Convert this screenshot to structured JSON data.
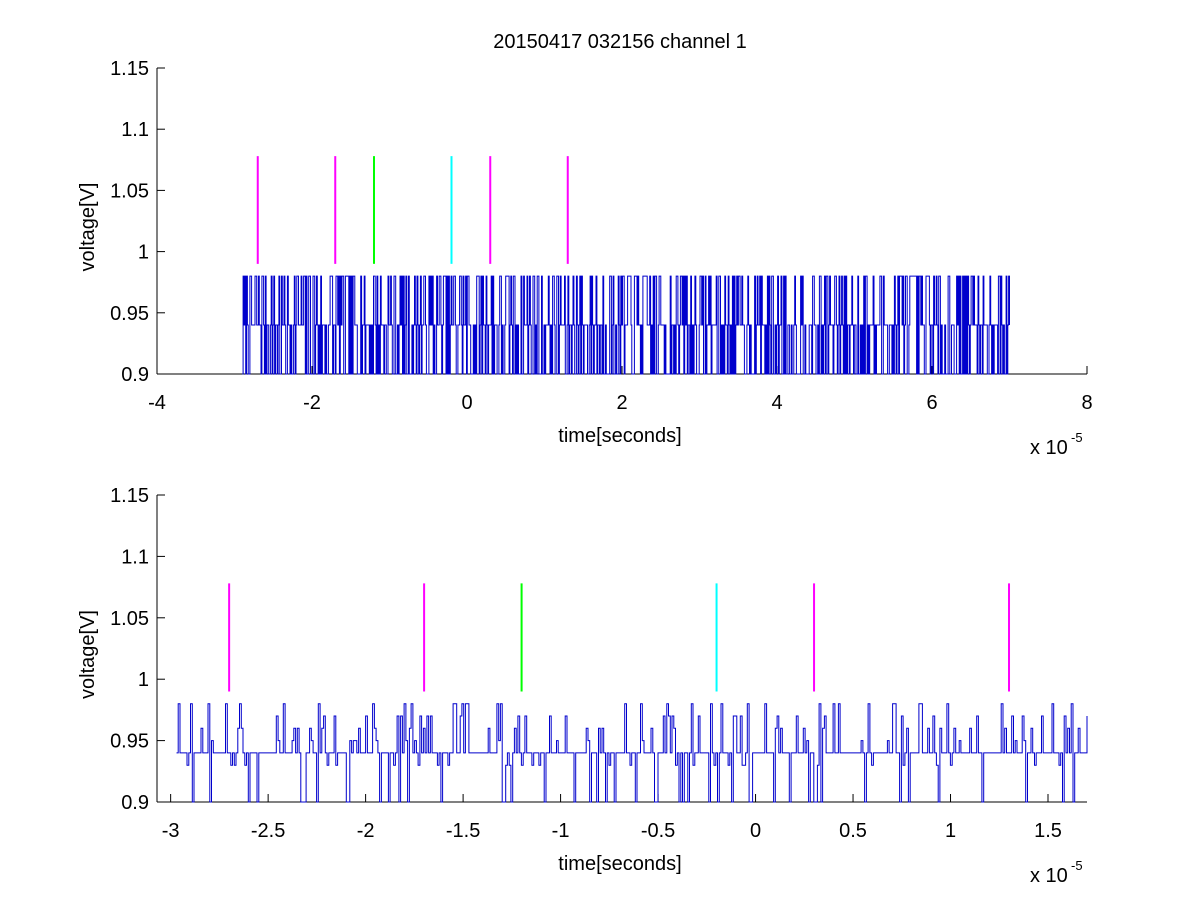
{
  "figure": {
    "title": "20150417 032156 channel 1"
  },
  "chart_data": [
    {
      "type": "line",
      "title": "20150417 032156 channel 1",
      "xlabel": "time[seconds]",
      "ylabel": "voltage[V]",
      "x_multiplier_label": "x 10",
      "x_multiplier_exponent": "-5",
      "xlim": [
        -4,
        8
      ],
      "ylim": [
        0.9,
        1.15
      ],
      "xticks": [
        -4,
        -2,
        0,
        2,
        4,
        6,
        8
      ],
      "xtick_labels": [
        "-4",
        "-2",
        "0",
        "2",
        "4",
        "6",
        "8"
      ],
      "yticks": [
        0.9,
        0.95,
        1,
        1.05,
        1.1,
        1.15
      ],
      "ytick_labels": [
        "0.9",
        "0.95",
        "1",
        "1.05",
        "1.1",
        "1.15"
      ],
      "grid": false,
      "signal": {
        "color": "#0000cc",
        "x_range": [
          -2.9,
          7.0
        ],
        "levels": [
          0.9,
          0.94,
          0.98
        ],
        "baseline": 0.94,
        "seed": 7
      },
      "markers": [
        {
          "x": -2.7,
          "y0": 0.99,
          "y1": 1.078,
          "color": "#ff00ff"
        },
        {
          "x": -1.7,
          "y0": 0.99,
          "y1": 1.078,
          "color": "#ff00ff"
        },
        {
          "x": -1.2,
          "y0": 0.99,
          "y1": 1.078,
          "color": "#00ff00"
        },
        {
          "x": -0.2,
          "y0": 0.99,
          "y1": 1.078,
          "color": "#00ffff"
        },
        {
          "x": 0.3,
          "y0": 0.99,
          "y1": 1.078,
          "color": "#ff00ff"
        },
        {
          "x": 1.3,
          "y0": 0.99,
          "y1": 1.078,
          "color": "#ff00ff"
        }
      ]
    },
    {
      "type": "line",
      "title": "",
      "xlabel": "time[seconds]",
      "ylabel": "voltage[V]",
      "x_multiplier_label": "x 10",
      "x_multiplier_exponent": "-5",
      "xlim": [
        -3.07,
        1.7
      ],
      "ylim": [
        0.9,
        1.15
      ],
      "xticks": [
        -3,
        -2.5,
        -2,
        -1.5,
        -1,
        -0.5,
        0,
        0.5,
        1,
        1.5
      ],
      "xtick_labels": [
        "-3",
        "-2.5",
        "-2",
        "-1.5",
        "-1",
        "-0.5",
        "0",
        "0.5",
        "1",
        "1.5"
      ],
      "yticks": [
        0.9,
        0.95,
        1,
        1.05,
        1.1,
        1.15
      ],
      "ytick_labels": [
        "0.9",
        "0.95",
        "1",
        "1.05",
        "1.1",
        "1.15"
      ],
      "grid": false,
      "signal": {
        "color": "#0000cc",
        "x_range": [
          -2.97,
          1.7
        ],
        "levels": [
          0.9,
          0.93,
          0.94,
          0.95,
          0.96,
          0.97,
          0.98
        ],
        "baseline": 0.94,
        "seed": 3
      },
      "markers": [
        {
          "x": -2.7,
          "y0": 0.99,
          "y1": 1.078,
          "color": "#ff00ff"
        },
        {
          "x": -1.7,
          "y0": 0.99,
          "y1": 1.078,
          "color": "#ff00ff"
        },
        {
          "x": -1.2,
          "y0": 0.99,
          "y1": 1.078,
          "color": "#00ff00"
        },
        {
          "x": -0.2,
          "y0": 0.99,
          "y1": 1.078,
          "color": "#00ffff"
        },
        {
          "x": 0.3,
          "y0": 0.99,
          "y1": 1.078,
          "color": "#ff00ff"
        },
        {
          "x": 1.3,
          "y0": 0.99,
          "y1": 1.078,
          "color": "#ff00ff"
        }
      ]
    }
  ]
}
